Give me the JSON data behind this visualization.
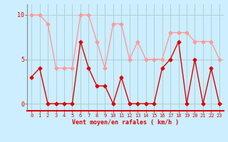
{
  "x": [
    0,
    1,
    2,
    3,
    4,
    5,
    6,
    7,
    8,
    9,
    10,
    11,
    12,
    13,
    14,
    15,
    16,
    17,
    18,
    19,
    20,
    21,
    22,
    23
  ],
  "wind_avg": [
    3,
    4,
    0,
    0,
    0,
    0,
    7,
    4,
    2,
    2,
    0,
    3,
    0,
    0,
    0,
    0,
    4,
    5,
    7,
    0,
    5,
    0,
    4,
    0
  ],
  "wind_gust": [
    10,
    10,
    9,
    4,
    4,
    4,
    10,
    10,
    7,
    4,
    9,
    9,
    5,
    7,
    5,
    5,
    5,
    8,
    8,
    8,
    7,
    7,
    7,
    5
  ],
  "avg_color": "#dd0000",
  "gust_color": "#ff9999",
  "bg_color": "#cceeff",
  "grid_color": "#aacccc",
  "xlabel": "Vent moyen/en rafales ( km/h )",
  "yticks": [
    0,
    5,
    10
  ],
  "xlim": [
    -0.5,
    23.5
  ],
  "ylim": [
    -0.8,
    11.2
  ],
  "xlabel_fontsize": 6,
  "tick_fontsize": 5,
  "ytick_fontsize": 6
}
